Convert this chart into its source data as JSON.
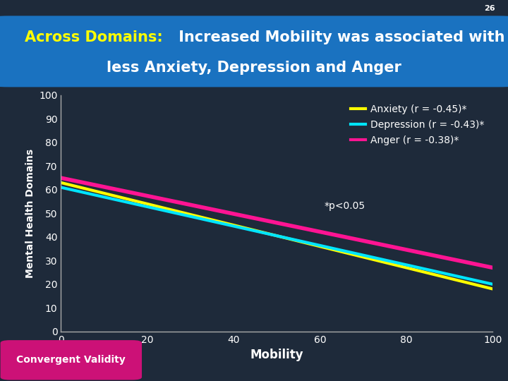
{
  "title_bold": "Across Domains:",
  "title_rest_line1": " Increased Mobility was associated with",
  "title_line2": "less Anxiety, Depression and Anger",
  "bg_color": "#1e2a3a",
  "header_bar_color": "#888888",
  "title_bg_color": "#1a72c0",
  "plot_bg_color": "#1e2a3a",
  "xlabel": "Mobility",
  "ylabel": "Mental Health Domains",
  "xlim": [
    0,
    100
  ],
  "ylim": [
    0,
    100
  ],
  "xticks": [
    0,
    20,
    40,
    60,
    80,
    100
  ],
  "yticks": [
    0,
    10,
    20,
    30,
    40,
    50,
    60,
    70,
    80,
    90,
    100
  ],
  "lines": [
    {
      "label": "Anxiety (r = -0.45)*",
      "color": "#ffff00",
      "x_start": 0,
      "y_start": 63,
      "x_end": 100,
      "y_end": 18,
      "linewidth": 3
    },
    {
      "label": "Depression (r = -0.43)*",
      "color": "#00e5ff",
      "x_start": 0,
      "y_start": 61,
      "x_end": 100,
      "y_end": 20,
      "linewidth": 3
    },
    {
      "label": "Anger (r = -0.38)*",
      "color": "#ff1493",
      "x_start": 0,
      "y_start": 65,
      "x_end": 100,
      "y_end": 27,
      "linewidth": 4
    }
  ],
  "annotation": "*p<0.05",
  "slide_number": "26",
  "convergent_label": "Convergent Validity",
  "convergent_bg": "#cc1177",
  "tick_color": "#ffffff",
  "axis_color": "#aaaaaa",
  "grid_color": "#2e3f55",
  "title_bold_color": "#ffff00",
  "title_regular_color": "#ffffff",
  "title_fontsize": 15
}
